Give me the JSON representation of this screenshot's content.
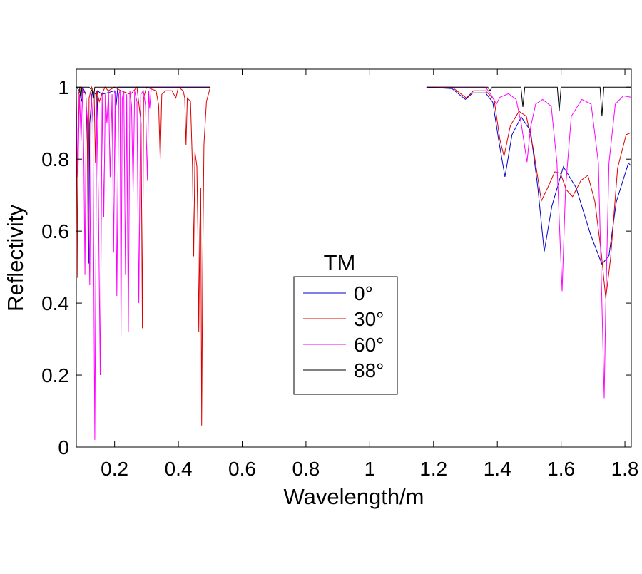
{
  "chart_data": {
    "type": "line",
    "title": "",
    "xlabel": "Wavelength/m",
    "ylabel": "Reflectivity",
    "xlim": [
      0.08,
      1.82
    ],
    "ylim": [
      0,
      1.05
    ],
    "xticks": [
      0.2,
      0.4,
      0.6,
      0.8,
      1,
      1.2,
      1.4,
      1.6,
      1.8
    ],
    "xtick_labels": [
      "0.2",
      "0.4",
      "0.6",
      "0.8",
      "1",
      "1.2",
      "1.4",
      "1.6",
      "1.8"
    ],
    "yticks": [
      0,
      0.2,
      0.4,
      0.6,
      0.8,
      1
    ],
    "ytick_labels": [
      "0",
      "0.2",
      "0.4",
      "0.6",
      "0.8",
      "1"
    ],
    "grid": false,
    "legend": {
      "title": "TM",
      "placement": "center"
    },
    "series": [
      {
        "name": "0°",
        "color": "#0000cc",
        "x": [
          0.08,
          0.09,
          0.094,
          0.097,
          0.1,
          0.11,
          0.116,
          0.119,
          0.122,
          0.13,
          0.141,
          0.144,
          0.147,
          0.16,
          0.2,
          0.205,
          0.21,
          0.5,
          null,
          1.178,
          1.258,
          1.3,
          1.323,
          1.363,
          1.386,
          1.404,
          1.424,
          1.446,
          1.475,
          1.504,
          1.527,
          1.547,
          1.571,
          1.607,
          1.647,
          1.692,
          1.728,
          1.75,
          1.773,
          1.811,
          1.82
        ],
        "y": [
          1.0,
          0.99,
          0.97,
          0.96,
          1.0,
          0.98,
          0.8,
          0.51,
          0.9,
          0.99,
          0.98,
          0.87,
          0.99,
          0.98,
          0.99,
          0.95,
          1.0,
          1.0,
          null,
          1.0,
          0.996,
          0.966,
          0.984,
          0.984,
          0.958,
          0.854,
          0.751,
          0.868,
          0.917,
          0.879,
          0.721,
          0.543,
          0.67,
          0.779,
          0.721,
          0.591,
          0.508,
          0.532,
          0.682,
          0.789,
          0.781
        ]
      },
      {
        "name": "30°",
        "color": "#dd0000",
        "x": [
          0.08,
          0.082,
          0.084,
          0.087,
          0.092,
          0.1,
          0.11,
          0.114,
          0.117,
          0.12,
          0.128,
          0.136,
          0.14,
          0.144,
          0.152,
          0.16,
          0.17,
          0.18,
          0.2,
          0.22,
          0.25,
          0.27,
          0.283,
          0.287,
          0.291,
          0.3,
          0.33,
          0.338,
          0.343,
          0.348,
          0.36,
          0.38,
          0.392,
          0.4,
          0.415,
          0.42,
          0.424,
          0.428,
          0.438,
          0.444,
          0.448,
          0.452,
          0.458,
          0.461,
          0.464,
          0.467,
          0.47,
          0.473,
          0.476,
          0.48,
          0.488,
          0.5,
          null,
          1.178,
          1.258,
          1.303,
          1.325,
          1.363,
          1.39,
          1.408,
          1.421,
          1.441,
          1.468,
          1.491,
          1.513,
          1.538,
          1.558,
          1.58,
          1.598,
          1.616,
          1.636,
          1.662,
          1.684,
          1.706,
          1.726,
          1.74,
          1.755,
          1.777,
          1.804,
          1.82
        ],
        "y": [
          1.0,
          0.8,
          0.47,
          0.98,
          1.0,
          0.99,
          0.98,
          0.9,
          0.57,
          0.97,
          1.0,
          0.98,
          0.79,
          0.99,
          0.96,
          0.98,
          1.0,
          0.99,
          1.0,
          0.99,
          0.98,
          1.0,
          0.9,
          0.33,
          0.97,
          1.0,
          0.99,
          0.95,
          0.8,
          0.98,
          0.99,
          0.99,
          0.97,
          1.0,
          0.99,
          0.97,
          0.84,
          0.97,
          0.96,
          0.78,
          0.53,
          0.82,
          0.78,
          0.6,
          0.32,
          0.6,
          0.72,
          0.06,
          0.5,
          0.84,
          0.96,
          1.0,
          null,
          1.0,
          1.0,
          0.97,
          0.99,
          0.99,
          0.966,
          0.854,
          0.808,
          0.893,
          0.933,
          0.919,
          0.828,
          0.684,
          0.721,
          0.765,
          0.761,
          0.715,
          0.696,
          0.741,
          0.755,
          0.682,
          0.538,
          0.413,
          0.524,
          0.775,
          0.868,
          0.874
        ]
      },
      {
        "name": "60°",
        "color": "#ff00ff",
        "x": [
          0.08,
          0.085,
          0.09,
          0.095,
          0.1,
          0.104,
          0.107,
          0.111,
          0.116,
          0.122,
          0.127,
          0.132,
          0.138,
          0.144,
          0.149,
          0.155,
          0.161,
          0.166,
          0.171,
          0.176,
          0.181,
          0.186,
          0.192,
          0.197,
          0.202,
          0.207,
          0.213,
          0.217,
          0.22,
          0.224,
          0.229,
          0.234,
          0.238,
          0.243,
          0.248,
          0.253,
          0.258,
          0.263,
          0.27,
          0.276,
          0.282,
          0.29,
          0.297,
          0.303,
          0.307,
          0.31,
          0.315,
          0.33,
          0.5,
          null,
          1.178,
          1.363,
          1.381,
          1.397,
          1.408,
          1.435,
          1.459,
          1.475,
          1.493,
          1.504,
          1.52,
          1.542,
          1.569,
          1.587,
          1.603,
          1.614,
          1.632,
          1.665,
          1.694,
          1.717,
          1.728,
          1.735,
          1.74,
          1.75,
          1.77,
          1.795,
          1.82
        ],
        "y": [
          0.95,
          0.75,
          0.98,
          0.85,
          1.0,
          0.78,
          0.48,
          0.95,
          0.9,
          0.45,
          0.98,
          0.9,
          0.02,
          0.95,
          0.7,
          0.2,
          0.98,
          0.64,
          0.98,
          0.9,
          0.99,
          0.75,
          0.98,
          0.54,
          0.99,
          0.42,
          0.98,
          0.99,
          0.31,
          0.97,
          0.99,
          0.48,
          0.98,
          0.32,
          0.99,
          0.95,
          0.71,
          0.99,
          0.96,
          0.4,
          0.98,
          0.99,
          0.95,
          0.74,
          0.99,
          0.94,
          1.0,
          1.0,
          1.0,
          null,
          1.0,
          1.0,
          0.978,
          0.953,
          0.972,
          0.982,
          0.966,
          0.899,
          0.792,
          0.887,
          0.953,
          0.966,
          0.947,
          0.789,
          0.433,
          0.721,
          0.919,
          0.966,
          0.953,
          0.789,
          0.393,
          0.136,
          0.393,
          0.789,
          0.953,
          0.976,
          0.972
        ]
      },
      {
        "name": "88°",
        "color": "#000000",
        "x": [
          0.08,
          0.09,
          0.094,
          0.098,
          0.12,
          0.13,
          0.134,
          0.138,
          0.5,
          null,
          1.178,
          1.37,
          1.377,
          1.384,
          1.474,
          1.48,
          1.486,
          1.588,
          1.594,
          1.6,
          1.722,
          1.728,
          1.734,
          1.82
        ],
        "y": [
          1.0,
          1.0,
          0.97,
          1.0,
          1.0,
          0.99,
          0.97,
          1.0,
          1.0,
          null,
          1.0,
          1.0,
          0.99,
          1.0,
          1.0,
          0.945,
          1.0,
          1.0,
          0.933,
          1.0,
          1.0,
          0.919,
          1.0,
          1.0
        ]
      }
    ]
  }
}
